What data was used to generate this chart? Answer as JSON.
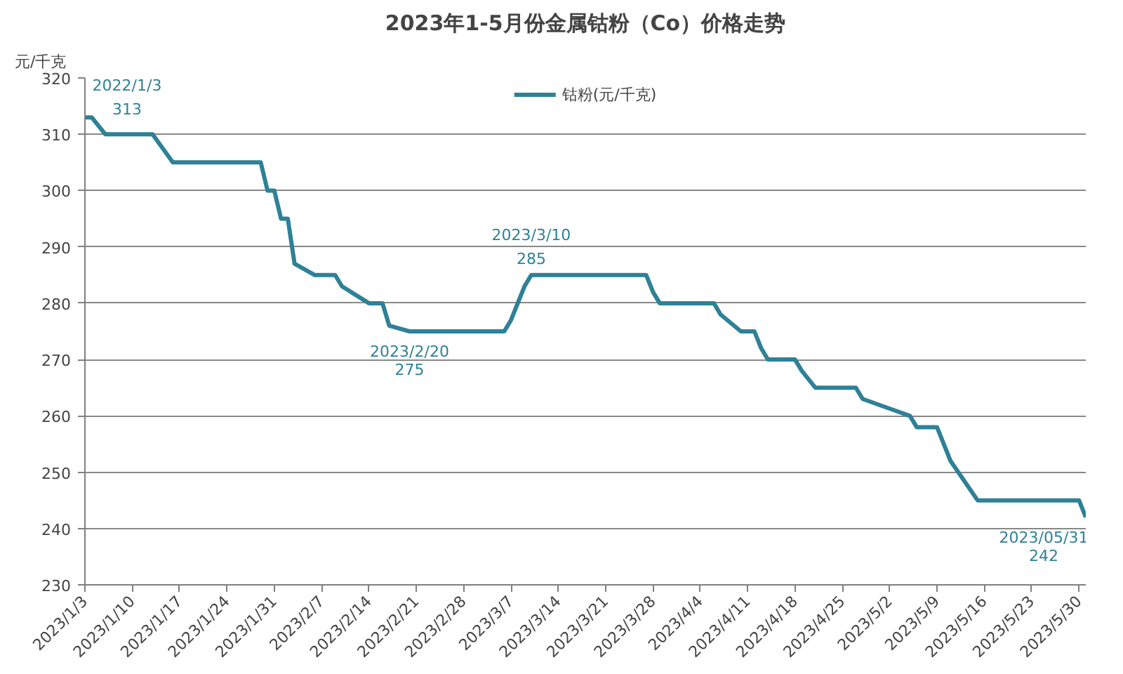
{
  "chart_data": {
    "type": "line",
    "title": "2023年1-5月份金属钴粉（Co）价格走势",
    "ylabel": "元/千克",
    "x": [
      "2023-01-03",
      "2023-01-04",
      "2023-01-06",
      "2023-01-13",
      "2023-01-16",
      "2023-01-29",
      "2023-01-30",
      "2023-01-31",
      "2023-02-01",
      "2023-02-02",
      "2023-02-03",
      "2023-02-06",
      "2023-02-09",
      "2023-02-10",
      "2023-02-14",
      "2023-02-16",
      "2023-02-17",
      "2023-02-20",
      "2023-03-06",
      "2023-03-07",
      "2023-03-09",
      "2023-03-10",
      "2023-03-27",
      "2023-03-28",
      "2023-03-29",
      "2023-04-06",
      "2023-04-07",
      "2023-04-10",
      "2023-04-12",
      "2023-04-13",
      "2023-04-14",
      "2023-04-18",
      "2023-04-19",
      "2023-04-21",
      "2023-04-27",
      "2023-04-28",
      "2023-05-05",
      "2023-05-06",
      "2023-05-09",
      "2023-05-11",
      "2023-05-15",
      "2023-05-30",
      "2023-05-31"
    ],
    "series": [
      {
        "name": "钴粉(元/千克)",
        "color": "#2e8196",
        "values": [
          313,
          313,
          310,
          310,
          305,
          305,
          300,
          300,
          295,
          295,
          287,
          285,
          285,
          283,
          280,
          280,
          276,
          275,
          275,
          277,
          283,
          285,
          285,
          282,
          280,
          280,
          278,
          275,
          275,
          272,
          270,
          270,
          268,
          265,
          265,
          263,
          260,
          258,
          258,
          252,
          245,
          245,
          242
        ]
      }
    ],
    "xlim": [
      "2023-01-03",
      "2023-05-31"
    ],
    "xticks": [
      {
        "value": "2023-01-03",
        "label": "2023/1/3"
      },
      {
        "value": "2023-01-10",
        "label": "2023/1/10"
      },
      {
        "value": "2023-01-17",
        "label": "2023/1/17"
      },
      {
        "value": "2023-01-24",
        "label": "2023/1/24"
      },
      {
        "value": "2023-01-31",
        "label": "2023/1/31"
      },
      {
        "value": "2023-02-07",
        "label": "2023/2/7"
      },
      {
        "value": "2023-02-14",
        "label": "2023/2/14"
      },
      {
        "value": "2023-02-21",
        "label": "2023/2/21"
      },
      {
        "value": "2023-02-28",
        "label": "2023/2/28"
      },
      {
        "value": "2023-03-07",
        "label": "2023/3/7"
      },
      {
        "value": "2023-03-14",
        "label": "2023/3/14"
      },
      {
        "value": "2023-03-21",
        "label": "2023/3/21"
      },
      {
        "value": "2023-03-28",
        "label": "2023/3/28"
      },
      {
        "value": "2023-04-04",
        "label": "2023/4/4"
      },
      {
        "value": "2023-04-11",
        "label": "2023/4/11"
      },
      {
        "value": "2023-04-18",
        "label": "2023/4/18"
      },
      {
        "value": "2023-04-25",
        "label": "2023/4/25"
      },
      {
        "value": "2023-05-02",
        "label": "2023/5/2"
      },
      {
        "value": "2023-05-09",
        "label": "2023/5/9"
      },
      {
        "value": "2023-05-16",
        "label": "2023/5/16"
      },
      {
        "value": "2023-05-23",
        "label": "2023/5/23"
      },
      {
        "value": "2023-05-30",
        "label": "2023/5/30"
      }
    ],
    "ylim": [
      230,
      320
    ],
    "yticks": [
      230,
      240,
      250,
      260,
      270,
      280,
      290,
      300,
      310,
      320
    ],
    "grid": "y",
    "legend": "top",
    "marker": "none",
    "line_style": "solid",
    "annotations": [
      {
        "text": "2022/1/3\n313",
        "x": "2023-01-03",
        "y": 313
      },
      {
        "text": "2023/2/20\n275",
        "x": "2023-02-20",
        "y": 275
      },
      {
        "text": "2023/3/10\n285",
        "x": "2023-03-10",
        "y": 285
      },
      {
        "text": "2023/05/31\n242",
        "x": "2023-05-31",
        "y": 242
      }
    ]
  }
}
